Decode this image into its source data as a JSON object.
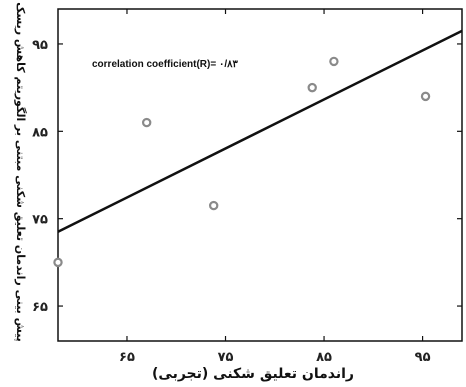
{
  "chart_data": {
    "type": "scatter",
    "title": "",
    "xlabel": "راندمان تعلیق شکنی (تجربی)",
    "ylabel": "پیش بینی راندمان تعلیق شکنی مبتنی بر الگوریتم کاهش ریسک",
    "xlim": [
      58,
      99
    ],
    "ylim": [
      61,
      99
    ],
    "x_ticks": [
      65,
      75,
      85,
      95
    ],
    "y_ticks": [
      65,
      75,
      85,
      95
    ],
    "x_tick_labels": [
      "۶۵",
      "۷۵",
      "۸۵",
      "۹۵"
    ],
    "y_tick_labels": [
      "۶۵",
      "۷۵",
      "۸۵",
      "۹۵"
    ],
    "grid": false,
    "annotation": "correlation coefficient(R)= ۰/۸۳",
    "points": [
      {
        "x": 58,
        "y": 70
      },
      {
        "x": 67,
        "y": 86
      },
      {
        "x": 73.8,
        "y": 76.5
      },
      {
        "x": 83.8,
        "y": 90
      },
      {
        "x": 86,
        "y": 93
      },
      {
        "x": 95.3,
        "y": 89
      }
    ],
    "fit_line": {
      "x": [
        58,
        99
      ],
      "y": [
        73.5,
        96.5
      ]
    },
    "colors": {
      "point_stroke": "#8a8a8a",
      "point_fill": "#ffffff",
      "line": "#111111",
      "axis": "#111111"
    }
  }
}
